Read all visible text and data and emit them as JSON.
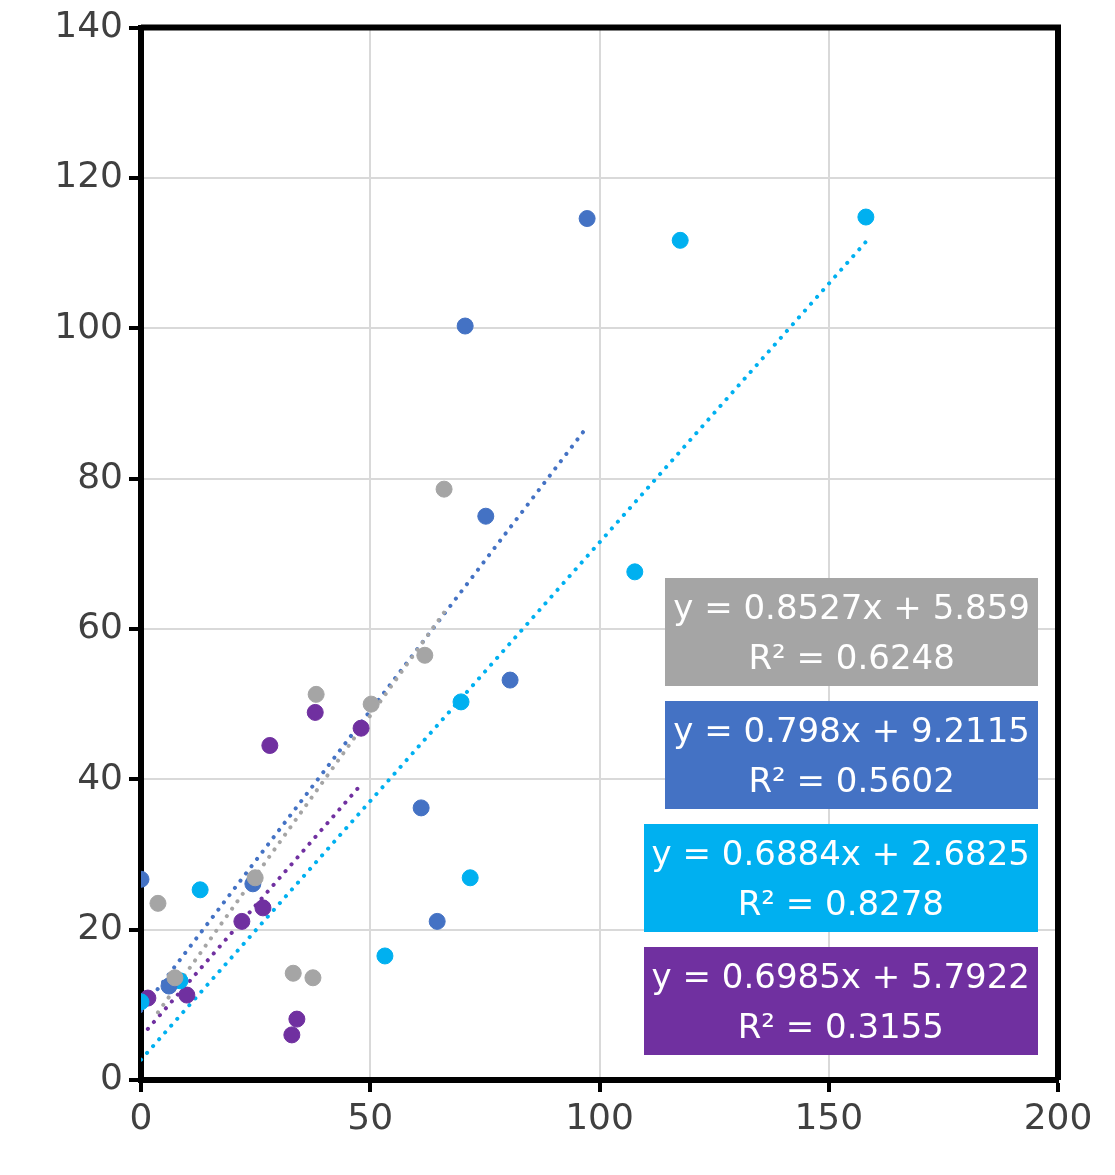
{
  "chart_data": {
    "type": "scatter",
    "xlim": [
      0,
      200
    ],
    "xticks": [
      0,
      50,
      100,
      150,
      200
    ],
    "ylim": [
      0,
      140
    ],
    "yticks": [
      0,
      20,
      40,
      60,
      80,
      100,
      120,
      140
    ],
    "grid": true,
    "legend": false,
    "marker": "circle",
    "series": [
      {
        "color": "#a5a5a5",
        "x": [
          3.7,
          7.4,
          24.9,
          33.2,
          37.5,
          38.2,
          50.2,
          61.9,
          66.1
        ],
        "values": [
          23.5,
          13.6,
          26.9,
          14.2,
          13.6,
          51.3,
          50.0,
          56.5,
          78.6
        ]
      },
      {
        "color": "#4472c4",
        "x": [
          0,
          6.1,
          24.4,
          61.1,
          64.6,
          70.7,
          75.2,
          80.5,
          97.3
        ],
        "values": [
          26.7,
          12.5,
          26.1,
          36.2,
          21.1,
          100.3,
          75.0,
          53.2,
          114.6
        ]
      },
      {
        "color": "#00b0f0",
        "x": [
          0,
          8.5,
          12.9,
          53.2,
          69.8,
          71.8,
          107.7,
          117.6,
          158.1
        ],
        "values": [
          10.4,
          13.2,
          25.3,
          16.5,
          50.3,
          26.9,
          67.6,
          111.7,
          114.8
        ]
      },
      {
        "color": "#7030a0",
        "x": [
          1.5,
          10.0,
          22.0,
          26.6,
          28.1,
          32.9,
          34.0,
          38.0,
          48.0
        ],
        "values": [
          10.9,
          11.3,
          21.1,
          22.9,
          44.5,
          6.0,
          8.1,
          48.9,
          46.8
        ]
      },
      {
        "type": "line",
        "marker": "none",
        "line_style": "dotted",
        "color": "#a5a5a5",
        "x": [
          3.7,
          66.1
        ],
        "values": [
          9.0,
          62.2
        ]
      },
      {
        "type": "line",
        "marker": "none",
        "line_style": "dotted",
        "color": "#4472c4",
        "x": [
          0,
          97.3
        ],
        "values": [
          9.2,
          86.9
        ]
      },
      {
        "type": "line",
        "marker": "none",
        "line_style": "dotted",
        "color": "#00b0f0",
        "x": [
          0,
          158.1
        ],
        "values": [
          2.7,
          111.5
        ]
      },
      {
        "type": "line",
        "marker": "none",
        "line_style": "dotted",
        "color": "#7030a0",
        "x": [
          1.5,
          48.0
        ],
        "values": [
          6.8,
          39.3
        ]
      }
    ],
    "annotations": [
      "y = 0.8527x + 5.859\nR² = 0.6248",
      "y = 0.798x + 9.2115\nR² = 0.5602",
      "y = 0.6884x + 2.6825\nR² = 0.8278",
      "y = 0.6985x + 5.7922\nR² = 0.3155"
    ]
  }
}
